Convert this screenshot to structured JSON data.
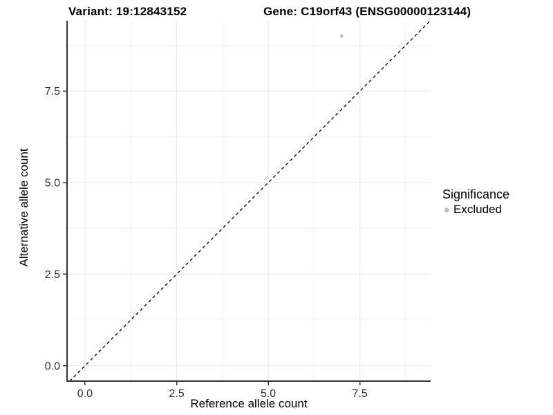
{
  "header": {
    "title_left": "Variant: 19:12843152",
    "title_right": "Gene: C19orf43 (ENSG00000123144)"
  },
  "chart_data": {
    "type": "scatter",
    "titles": {
      "left": "Variant: 19:12843152",
      "right": "Gene: C19orf43 (ENSG00000123144)"
    },
    "xlabel": "Reference allele count",
    "ylabel": "Alternative allele count",
    "xlim": [
      -0.47,
      9.43
    ],
    "ylim": [
      -0.42,
      9.42
    ],
    "x_major_ticks": [
      0,
      2.5,
      5,
      7.5
    ],
    "x_tick_labels": [
      "0.0",
      "2.5",
      "5.0",
      "7.5"
    ],
    "y_major_ticks": [
      0,
      2.5,
      5,
      7.5
    ],
    "y_tick_labels": [
      "0.0",
      "2.5",
      "5.0",
      "7.5"
    ],
    "x_minor_ticks": [
      1.25,
      3.75,
      6.25,
      8.75
    ],
    "y_minor_ticks": [
      1.25,
      3.75,
      6.25,
      8.75
    ],
    "grid": "on",
    "points": [
      {
        "x": 7,
        "y": 9,
        "series": "Excluded"
      }
    ],
    "identity_line": {
      "equation": "y = x",
      "style": "dashed",
      "from": -0.42,
      "to": 9.42
    },
    "legend": {
      "position": "right",
      "title": "Significance",
      "items": [
        {
          "label": "Excluded",
          "color": "#bebebe"
        }
      ]
    },
    "colors": {
      "point": "#bebebe",
      "grid_major": "#e9e9e9",
      "grid_minor": "#f2f2f2",
      "axis_line": "#333333",
      "tick_mark": "#333333",
      "identity_line": "#000000"
    }
  }
}
